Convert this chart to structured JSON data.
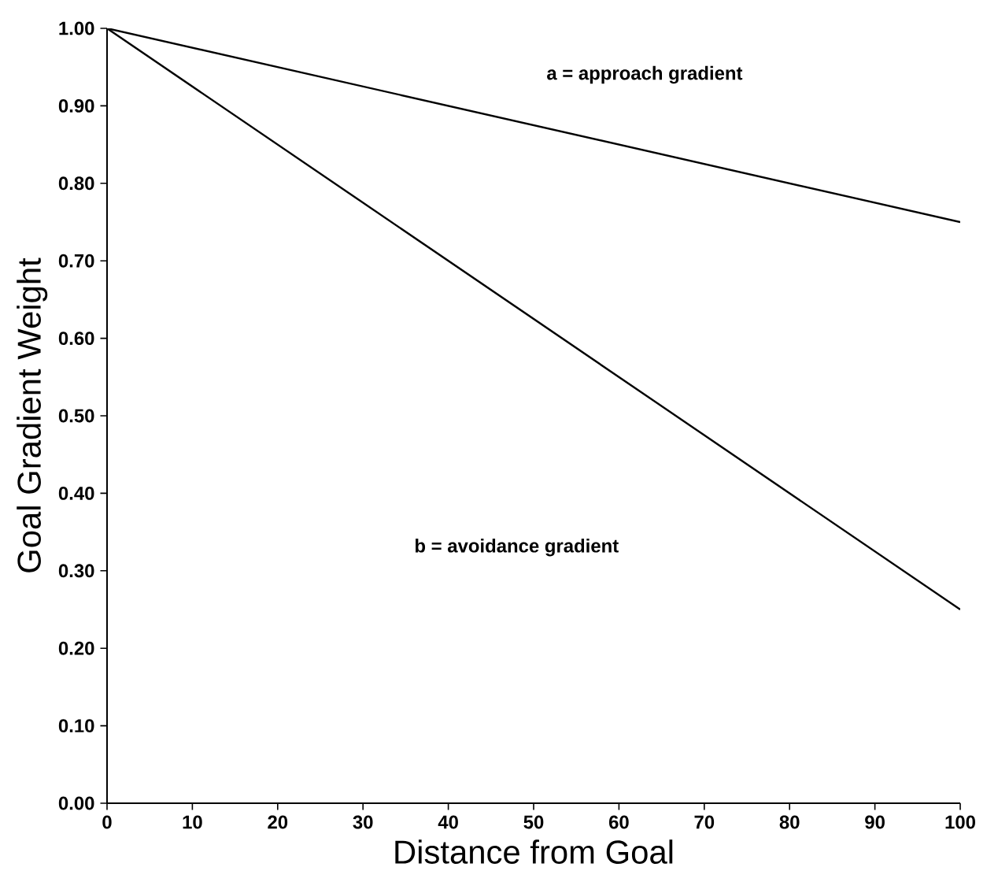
{
  "chart_data": {
    "type": "line",
    "xlabel": "Distance from Goal",
    "ylabel": "Goal Gradient Weight",
    "x": [
      0,
      100
    ],
    "series": [
      {
        "color": "#000000",
        "values": [
          1.0,
          0.75
        ]
      },
      {
        "color": "#000000",
        "values": [
          1.0,
          0.25
        ]
      }
    ],
    "xlim": [
      0,
      100
    ],
    "ylim": [
      0,
      1
    ],
    "xticks": [
      0,
      10,
      20,
      30,
      40,
      50,
      60,
      70,
      80,
      90,
      100
    ],
    "yticks": [
      {
        "value": 0,
        "label": "0.00"
      },
      {
        "value": 0.1,
        "label": "0.10"
      },
      {
        "value": 0.2,
        "label": "0.20"
      },
      {
        "value": 0.3,
        "label": "0.30"
      },
      {
        "value": 0.4,
        "label": "0.40"
      },
      {
        "value": 0.5,
        "label": "0.50"
      },
      {
        "value": 0.6,
        "label": "0.60"
      },
      {
        "value": 0.7,
        "label": "0.70"
      },
      {
        "value": 0.8,
        "label": "0.80"
      },
      {
        "value": 0.9,
        "label": "0.90"
      },
      {
        "value": 1.0,
        "label": "1.00"
      }
    ],
    "annotations": [
      "a = approach gradient",
      "b = avoidance gradient"
    ],
    "grid": false,
    "marker": "none",
    "line_style": "solid"
  }
}
